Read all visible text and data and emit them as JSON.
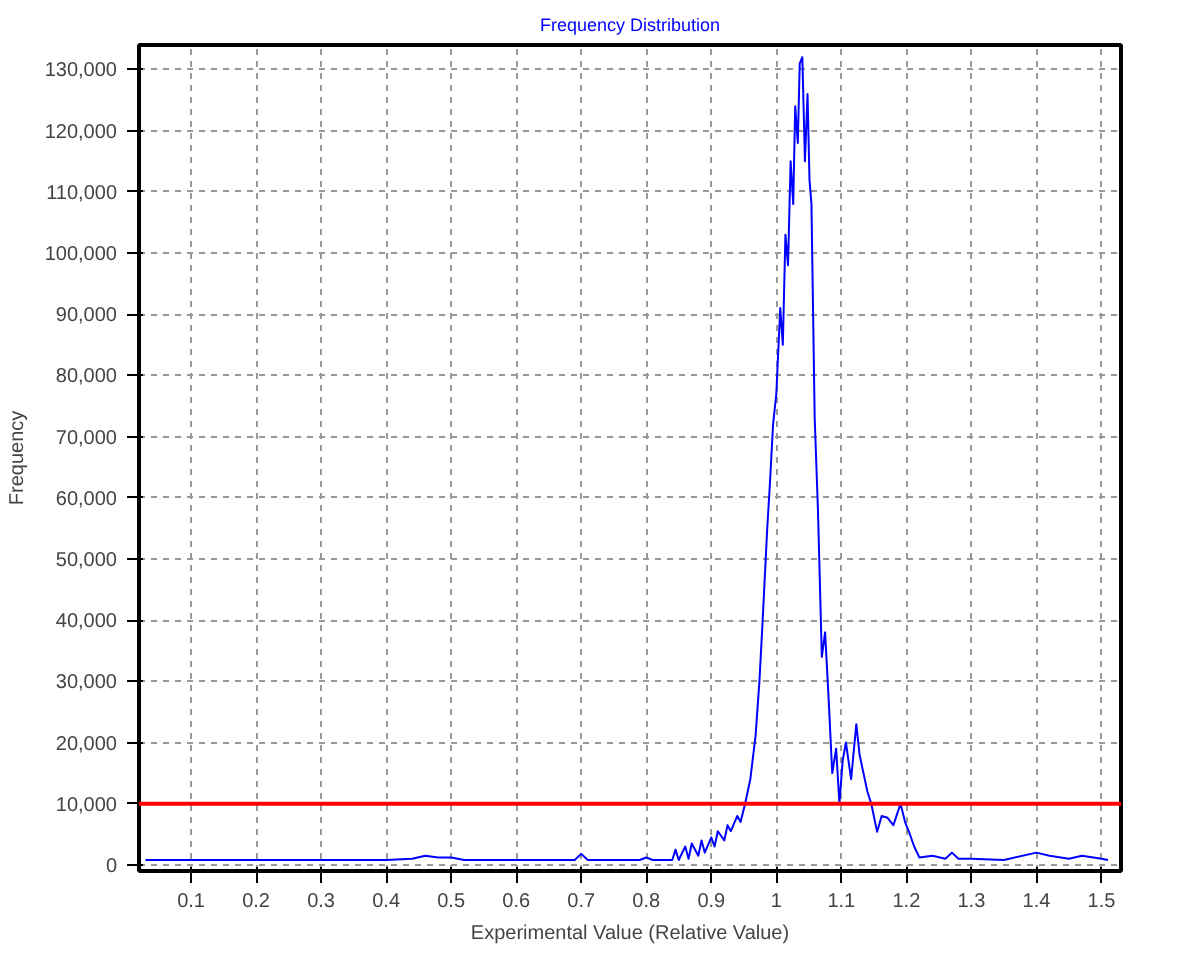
{
  "chart_data": {
    "type": "line",
    "title": "Frequency Distribution",
    "xlabel": "Experimental Value (Relative Value)",
    "ylabel": "Frequency",
    "xlim": [
      0.02,
      1.53
    ],
    "ylim": [
      -1000,
      134000
    ],
    "xticks": [
      0.1,
      0.2,
      0.3,
      0.4,
      0.5,
      0.6,
      0.7,
      0.8,
      0.9,
      {
        "value": 1.0,
        "label": "1"
      },
      1.1,
      1.2,
      1.3,
      1.4,
      1.5
    ],
    "yticks": [
      {
        "value": 0,
        "label": "0"
      },
      {
        "value": 10000,
        "label": "10,000"
      },
      {
        "value": 20000,
        "label": "20,000"
      },
      {
        "value": 30000,
        "label": "30,000"
      },
      {
        "value": 40000,
        "label": "40,000"
      },
      {
        "value": 50000,
        "label": "50,000"
      },
      {
        "value": 60000,
        "label": "60,000"
      },
      {
        "value": 70000,
        "label": "70,000"
      },
      {
        "value": 80000,
        "label": "80,000"
      },
      {
        "value": 90000,
        "label": "90,000"
      },
      {
        "value": 100000,
        "label": "100,000"
      },
      {
        "value": 110000,
        "label": "110,000"
      },
      {
        "value": 120000,
        "label": "120,000"
      },
      {
        "value": 130000,
        "label": "130,000"
      }
    ],
    "grid": true,
    "line_style": "solid",
    "series": [
      {
        "color": "#0000ff",
        "x": [
          0.03,
          0.1,
          0.2,
          0.3,
          0.4,
          0.44,
          0.46,
          0.48,
          0.5,
          0.52,
          0.6,
          0.69,
          0.7,
          0.71,
          0.79,
          0.8,
          0.81,
          0.84,
          0.845,
          0.85,
          0.86,
          0.865,
          0.87,
          0.88,
          0.885,
          0.89,
          0.9,
          0.905,
          0.91,
          0.92,
          0.925,
          0.93,
          0.94,
          0.945,
          0.952,
          0.96,
          0.968,
          0.974,
          0.979,
          0.986,
          0.99,
          0.995,
          1.0,
          1.006,
          1.01,
          1.014,
          1.018,
          1.022,
          1.026,
          1.029,
          1.033,
          1.036,
          1.04,
          1.044,
          1.048,
          1.051,
          1.054,
          1.059,
          1.064,
          1.07,
          1.075,
          1.08,
          1.086,
          1.092,
          1.097,
          1.102,
          1.107,
          1.115,
          1.123,
          1.128,
          1.134,
          1.14,
          1.146,
          1.155,
          1.162,
          1.171,
          1.18,
          1.191,
          1.198,
          1.204,
          1.212,
          1.22,
          1.24,
          1.26,
          1.27,
          1.28,
          1.3,
          1.35,
          1.4,
          1.42,
          1.45,
          1.47,
          1.5,
          1.51
        ],
        "values": [
          800,
          800,
          800,
          800,
          800,
          1000,
          1500,
          1200,
          1200,
          800,
          800,
          800,
          1800,
          800,
          800,
          1200,
          800,
          800,
          2500,
          800,
          3000,
          1000,
          3500,
          1500,
          4000,
          2000,
          4500,
          3000,
          5500,
          4000,
          6500,
          5500,
          8000,
          7000,
          10000,
          14000,
          21000,
          30000,
          40000,
          55000,
          62000,
          72000,
          77000,
          91000,
          85000,
          103000,
          98000,
          115000,
          108000,
          124000,
          118000,
          131000,
          132000,
          115000,
          126000,
          112000,
          108000,
          73000,
          58000,
          34000,
          38000,
          28000,
          15000,
          19000,
          10000,
          17000,
          20000,
          14000,
          23000,
          18000,
          15000,
          12000,
          10000,
          5400,
          8000,
          7700,
          6500,
          10000,
          7000,
          5400,
          3000,
          1200,
          1500,
          1000,
          2000,
          1000,
          1000,
          800,
          2000,
          1500,
          1000,
          1500,
          1000,
          800
        ]
      }
    ],
    "ref_lines": [
      {
        "axis": "y",
        "value": 10000,
        "color": "#ff0000"
      }
    ]
  }
}
